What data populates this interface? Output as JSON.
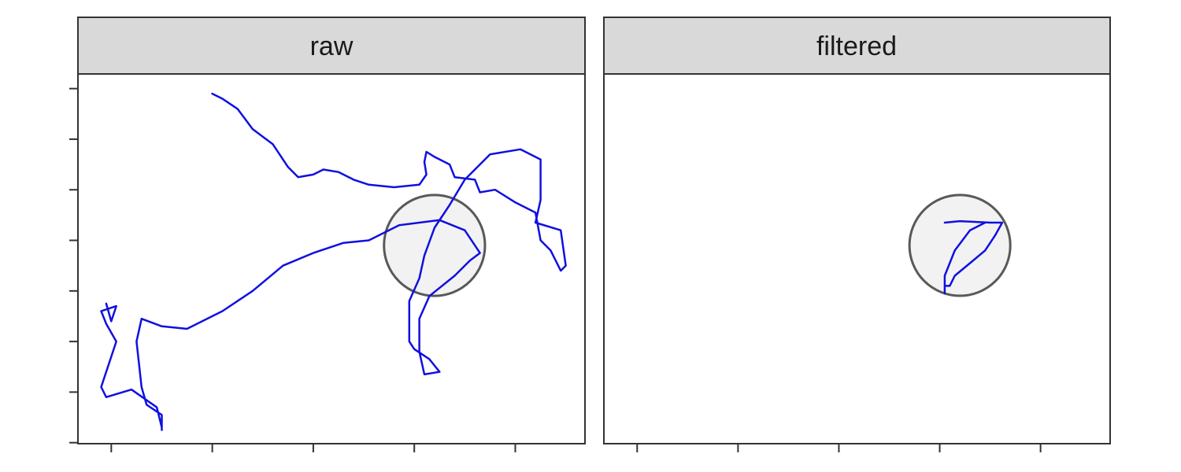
{
  "chart_data": {
    "type": "line",
    "title": "",
    "xlabel": "",
    "ylabel": "",
    "grid": false,
    "legend": "none",
    "colors": {
      "path": "#1010e0",
      "circle_fill": "#f2f2f2",
      "circle_stroke": "#595959",
      "strip_bg": "#d9d9d9",
      "panel_border": "#333333"
    },
    "xlim": [
      -0.33,
      4.69
    ],
    "ylim": [
      -0.02,
      7.29
    ],
    "x_ticks": [
      0,
      1,
      2,
      3,
      4
    ],
    "y_ticks": [
      0,
      1,
      2,
      3,
      4,
      5,
      6,
      7
    ],
    "facets": [
      {
        "strip_label": "raw",
        "circle": {
          "cx": 3.2,
          "cy": 3.9,
          "r": 0.5
        },
        "path_points": [
          [
            1.0,
            6.9
          ],
          [
            1.1,
            6.8
          ],
          [
            1.25,
            6.6
          ],
          [
            1.4,
            6.2
          ],
          [
            1.6,
            5.9
          ],
          [
            1.75,
            5.45
          ],
          [
            1.85,
            5.25
          ],
          [
            2.0,
            5.3
          ],
          [
            2.1,
            5.4
          ],
          [
            2.25,
            5.35
          ],
          [
            2.4,
            5.2
          ],
          [
            2.55,
            5.1
          ],
          [
            2.8,
            5.05
          ],
          [
            3.05,
            5.1
          ],
          [
            3.12,
            5.3
          ],
          [
            3.1,
            5.55
          ],
          [
            3.12,
            5.75
          ],
          [
            3.2,
            5.65
          ],
          [
            3.35,
            5.5
          ],
          [
            3.4,
            5.25
          ],
          [
            3.6,
            5.2
          ],
          [
            3.65,
            4.95
          ],
          [
            3.8,
            5.0
          ],
          [
            4.0,
            4.75
          ],
          [
            4.2,
            4.55
          ],
          [
            4.25,
            4.0
          ],
          [
            4.35,
            3.8
          ],
          [
            4.45,
            3.4
          ],
          [
            4.5,
            3.5
          ],
          [
            4.45,
            4.2
          ],
          [
            4.2,
            4.35
          ],
          [
            4.25,
            4.8
          ],
          [
            4.25,
            5.6
          ],
          [
            4.05,
            5.8
          ],
          [
            3.75,
            5.7
          ],
          [
            3.5,
            5.2
          ],
          [
            3.35,
            4.7
          ],
          [
            3.2,
            4.25
          ],
          [
            3.1,
            3.7
          ],
          [
            3.05,
            3.25
          ],
          [
            2.95,
            2.8
          ],
          [
            2.95,
            2.0
          ],
          [
            3.0,
            1.85
          ],
          [
            3.15,
            1.65
          ],
          [
            3.25,
            1.4
          ],
          [
            3.1,
            1.35
          ],
          [
            3.05,
            1.8
          ],
          [
            3.05,
            2.45
          ],
          [
            3.15,
            2.9
          ],
          [
            3.4,
            3.3
          ],
          [
            3.55,
            3.6
          ],
          [
            3.65,
            3.75
          ],
          [
            3.5,
            4.2
          ],
          [
            3.25,
            4.4
          ],
          [
            2.85,
            4.3
          ],
          [
            2.55,
            4.0
          ],
          [
            2.3,
            3.95
          ],
          [
            2.0,
            3.75
          ],
          [
            1.7,
            3.5
          ],
          [
            1.4,
            3.0
          ],
          [
            1.1,
            2.6
          ],
          [
            0.75,
            2.25
          ],
          [
            0.5,
            2.3
          ],
          [
            0.3,
            2.45
          ],
          [
            0.25,
            2.0
          ],
          [
            0.3,
            1.1
          ],
          [
            0.35,
            0.75
          ],
          [
            0.5,
            0.55
          ],
          [
            0.5,
            0.25
          ],
          [
            0.5,
            0.25
          ],
          [
            0.5,
            0.3
          ],
          [
            0.45,
            0.7
          ],
          [
            0.2,
            1.05
          ],
          [
            -0.05,
            0.9
          ],
          [
            -0.1,
            1.1
          ],
          [
            0.0,
            1.7
          ],
          [
            0.05,
            2.0
          ],
          [
            -0.05,
            2.35
          ],
          [
            -0.1,
            2.6
          ],
          [
            0.05,
            2.7
          ],
          [
            0.0,
            2.4
          ],
          [
            -0.05,
            2.75
          ]
        ]
      },
      {
        "strip_label": "filtered",
        "circle": {
          "cx": 3.2,
          "cy": 3.9,
          "r": 0.5
        },
        "path_points": [
          [
            3.05,
            4.35
          ],
          [
            3.2,
            4.38
          ],
          [
            3.5,
            4.35
          ],
          [
            3.62,
            4.35
          ],
          [
            3.55,
            4.1
          ],
          [
            3.45,
            3.8
          ],
          [
            3.3,
            3.55
          ],
          [
            3.15,
            3.3
          ],
          [
            3.1,
            3.1
          ],
          [
            3.05,
            3.1
          ],
          [
            3.05,
            2.95
          ],
          [
            3.05,
            3.3
          ],
          [
            3.15,
            3.8
          ],
          [
            3.3,
            4.2
          ],
          [
            3.45,
            4.35
          ]
        ]
      }
    ]
  }
}
